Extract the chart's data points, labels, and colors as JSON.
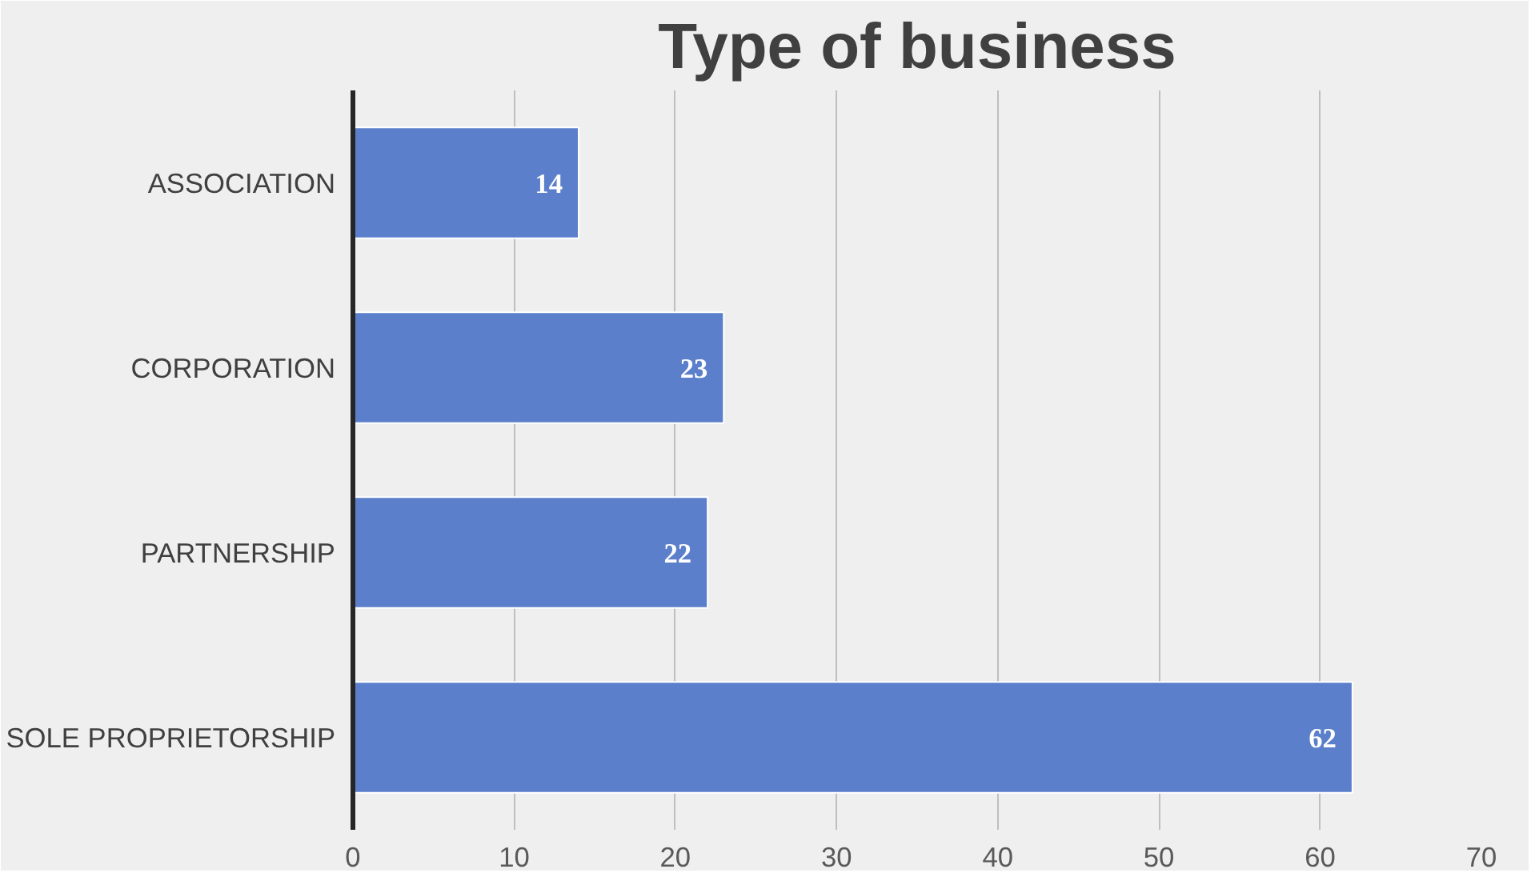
{
  "chart_data": {
    "type": "bar",
    "orientation": "horizontal",
    "title": "Type of business",
    "categories": [
      "ASSOCIATION",
      "CORPORATION",
      "PARTNERSHIP",
      "SOLE PROPRIETORSHIP"
    ],
    "values": [
      14,
      23,
      22,
      62
    ],
    "color": "#5b7fcb",
    "xlim": [
      0,
      70
    ],
    "xticks": [
      0,
      10,
      20,
      30,
      40,
      50,
      60,
      70
    ],
    "grid": "x",
    "data_labels": true
  }
}
